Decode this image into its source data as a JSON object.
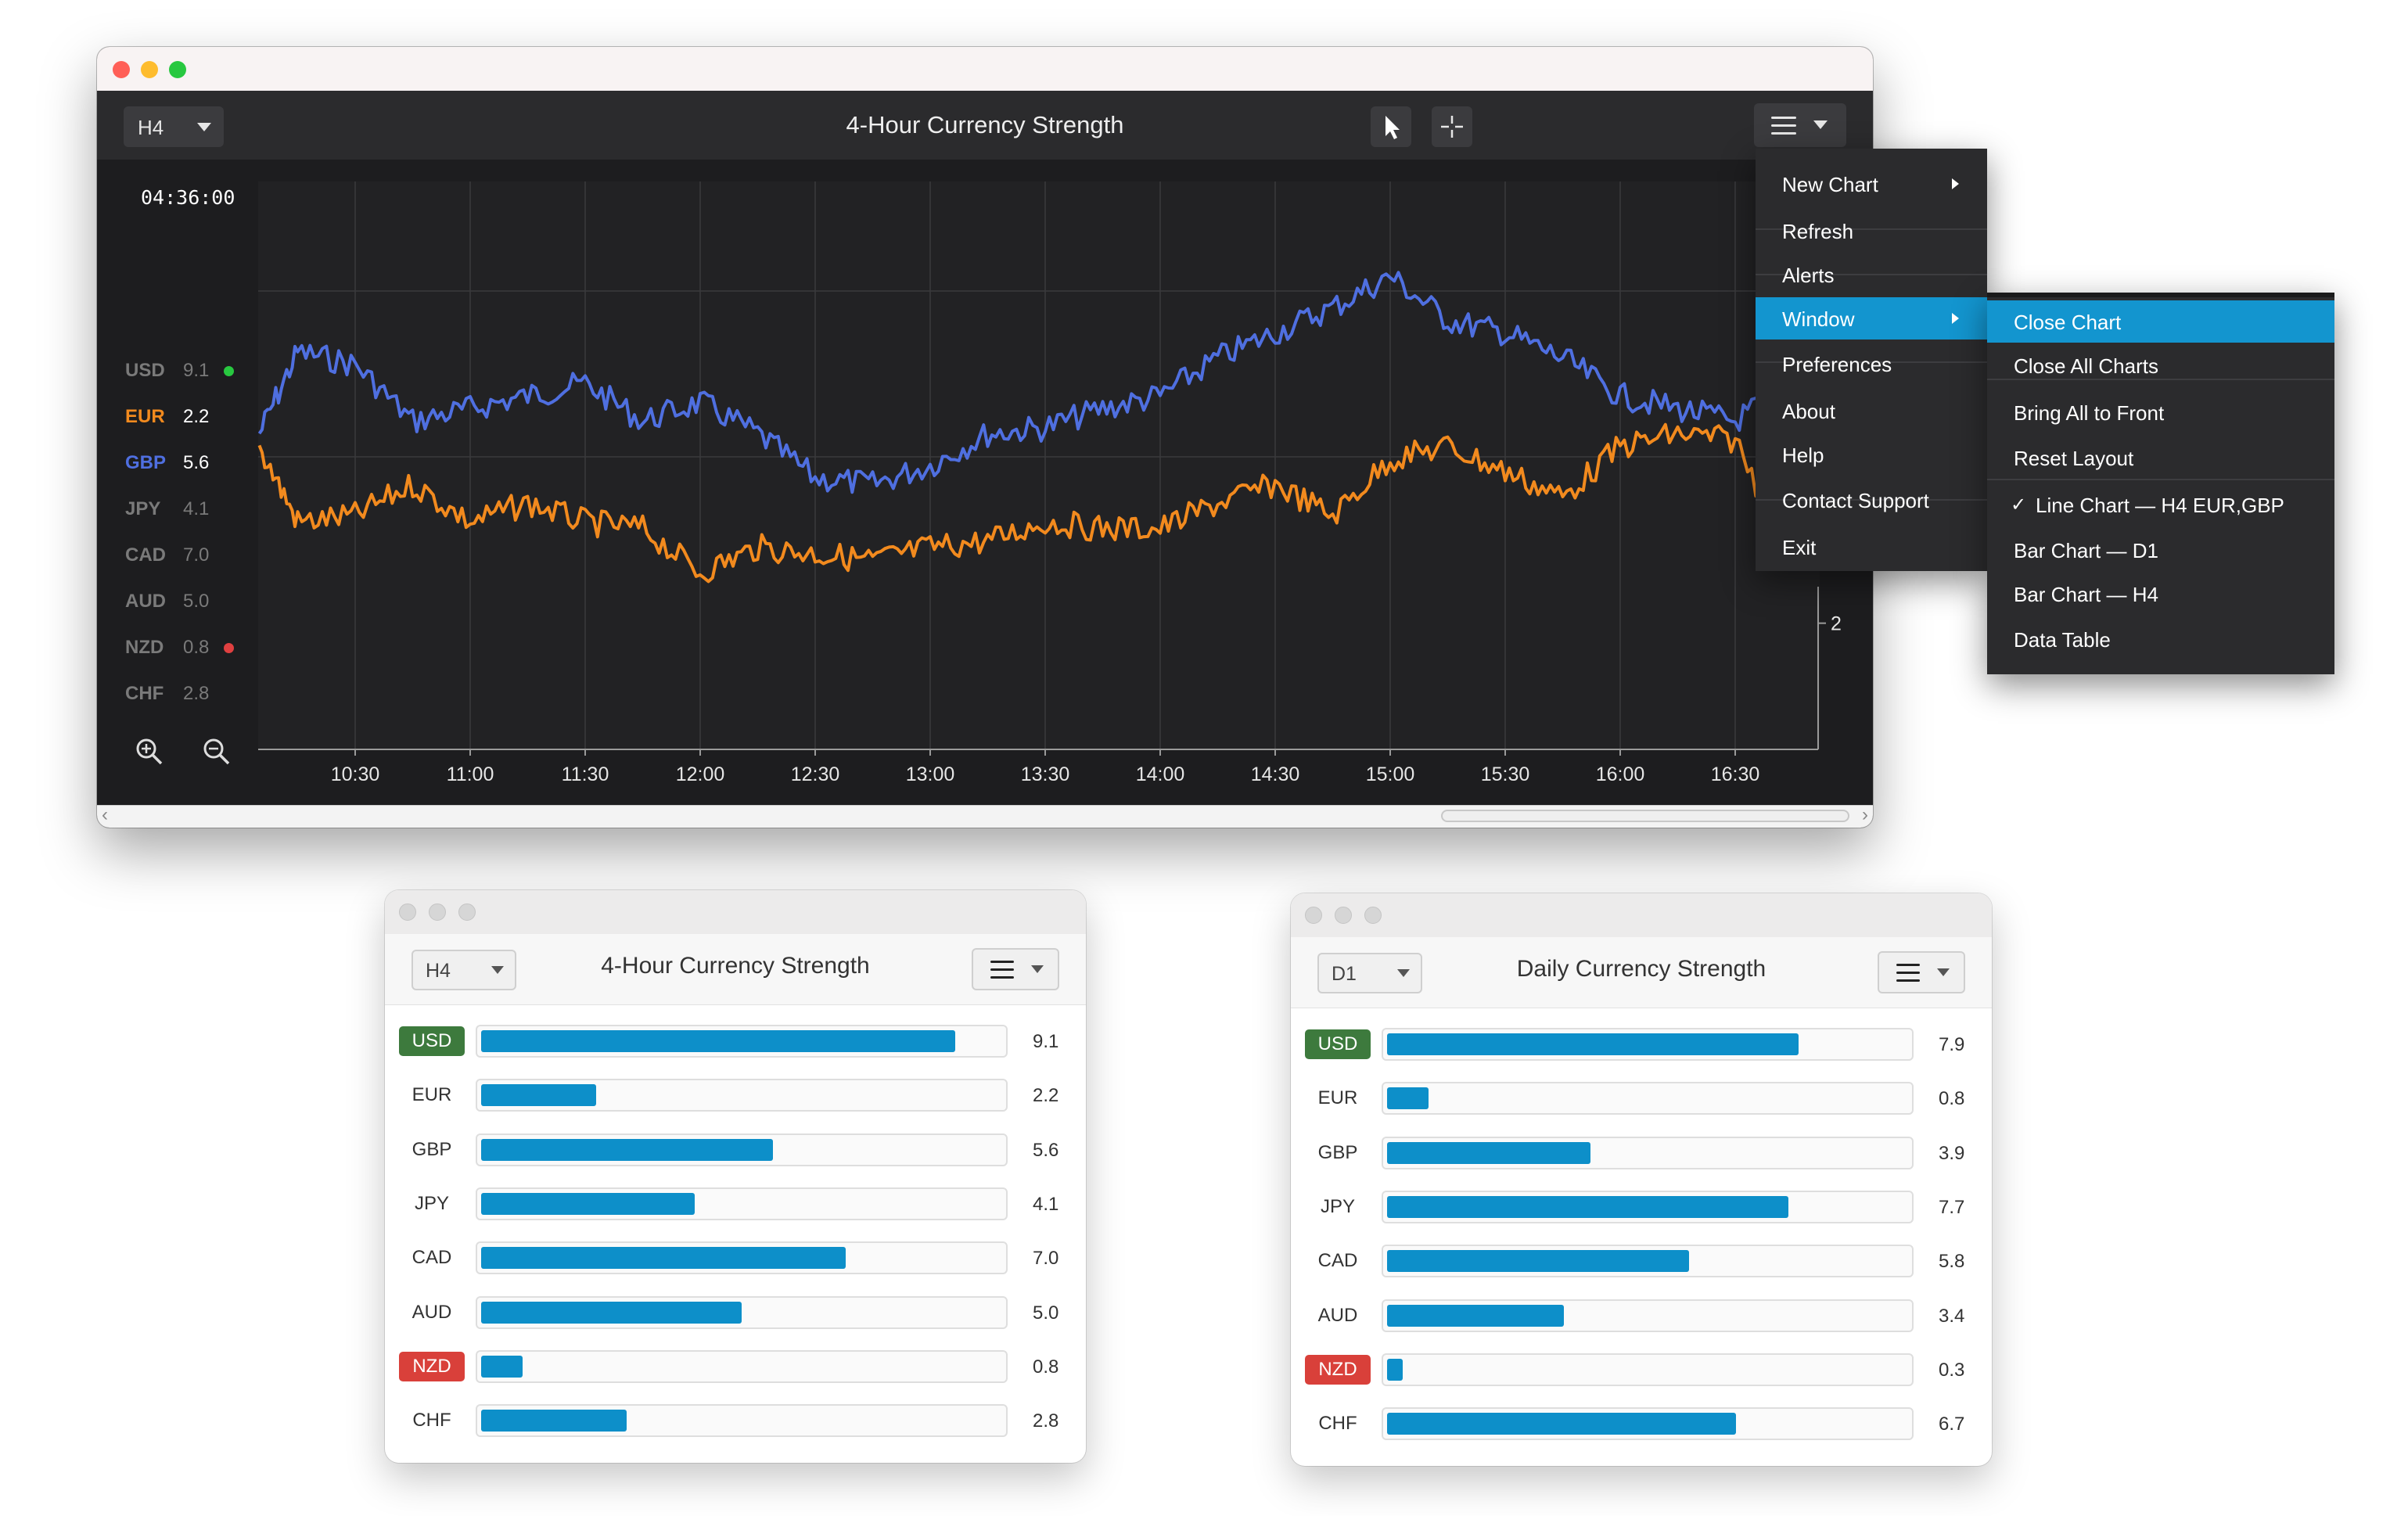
{
  "main_window": {
    "timeframe": "H4",
    "title": "4-Hour Currency Strength",
    "time_readout": "04:36:00",
    "legend": [
      {
        "code": "USD",
        "value": "9.1",
        "color": "#7a7a7a",
        "dot": "#28c840"
      },
      {
        "code": "EUR",
        "value": "2.2",
        "color": "#f28a1e",
        "dot": ""
      },
      {
        "code": "GBP",
        "value": "5.6",
        "color": "#4f6fe0",
        "dot": ""
      },
      {
        "code": "JPY",
        "value": "4.1",
        "color": "#7a7a7a",
        "dot": ""
      },
      {
        "code": "CAD",
        "value": "7.0",
        "color": "#7a7a7a",
        "dot": ""
      },
      {
        "code": "AUD",
        "value": "5.0",
        "color": "#7a7a7a",
        "dot": ""
      },
      {
        "code": "NZD",
        "value": "0.8",
        "color": "#7a7a7a",
        "dot": "#e04040"
      },
      {
        "code": "CHF",
        "value": "2.8",
        "color": "#7a7a7a",
        "dot": ""
      }
    ],
    "icons": [
      "arrow-cursor-icon",
      "crosshair-icon",
      "hamburger-icon",
      "zoom-in-icon",
      "zoom-out-icon"
    ]
  },
  "chart_data": {
    "type": "line",
    "x_tick_labels": [
      "10:30",
      "11:00",
      "11:30",
      "12:00",
      "12:30",
      "13:00",
      "13:30",
      "14:00",
      "14:30",
      "15:00",
      "15:30",
      "16:00",
      "16:30"
    ],
    "y_tick_labels_visible": [
      "2"
    ],
    "grid": true,
    "series": [
      {
        "name": "GBP",
        "color": "#4f6fe0",
        "x": [
          "10:05",
          "10:15",
          "10:30",
          "10:45",
          "11:00",
          "11:15",
          "11:30",
          "11:45",
          "12:00",
          "12:15",
          "12:30",
          "12:45",
          "13:00",
          "13:15",
          "13:30",
          "13:45",
          "14:00",
          "14:15",
          "14:30",
          "14:45",
          "15:00",
          "15:15",
          "15:30",
          "15:45",
          "16:00",
          "16:15",
          "16:30",
          "16:45"
        ],
        "y": [
          5.0,
          6.3,
          6.1,
          5.2,
          5.4,
          5.6,
          5.8,
          5.2,
          5.5,
          5.0,
          4.3,
          4.2,
          4.5,
          5.0,
          5.1,
          5.4,
          5.6,
          6.2,
          6.6,
          7.0,
          7.5,
          6.8,
          6.6,
          6.2,
          5.6,
          5.4,
          5.2,
          5.8
        ]
      },
      {
        "name": "EUR",
        "color": "#f28a1e",
        "x": [
          "10:05",
          "10:15",
          "10:30",
          "10:45",
          "11:00",
          "11:15",
          "11:30",
          "11:45",
          "12:00",
          "12:15",
          "12:30",
          "12:45",
          "13:00",
          "13:15",
          "13:30",
          "13:45",
          "14:00",
          "14:15",
          "14:30",
          "14:45",
          "15:00",
          "15:15",
          "15:30",
          "15:45",
          "16:00",
          "16:15",
          "16:30",
          "16:45"
        ],
        "y": [
          4.8,
          3.6,
          3.7,
          4.2,
          3.6,
          3.9,
          3.6,
          3.5,
          2.8,
          3.2,
          3.1,
          3.0,
          3.2,
          3.3,
          3.6,
          3.5,
          3.5,
          3.9,
          4.2,
          3.7,
          4.6,
          4.8,
          4.4,
          4.0,
          4.8,
          5.0,
          4.9,
          3.0
        ]
      }
    ],
    "ylim": [
      0,
      9
    ]
  },
  "menu": {
    "items": [
      {
        "label": "New Chart",
        "submenu": true
      },
      {
        "label": "Refresh",
        "submenu": false
      },
      {
        "label": "Alerts",
        "submenu": false
      },
      {
        "label": "Window",
        "submenu": true,
        "active": true
      },
      {
        "label": "Preferences",
        "submenu": false
      },
      {
        "label": "About",
        "submenu": false
      },
      {
        "label": "Help",
        "submenu": false
      },
      {
        "label": "Contact Support",
        "submenu": false
      },
      {
        "label": "Exit",
        "submenu": false
      }
    ],
    "window_submenu": [
      {
        "label": "Close Chart",
        "active": true
      },
      {
        "label": "Close All Charts"
      },
      {
        "label": "Bring All to Front"
      },
      {
        "label": "Reset Layout"
      },
      {
        "label": "Line Chart — H4  EUR,GBP",
        "checked": true
      },
      {
        "label": "Bar Chart — D1"
      },
      {
        "label": "Bar Chart — H4"
      },
      {
        "label": "Data Table"
      }
    ]
  },
  "bar_windows": [
    {
      "timeframe": "H4",
      "title": "4-Hour Currency Strength",
      "rows": [
        {
          "code": "USD",
          "value": "9.1",
          "badge": "pos"
        },
        {
          "code": "EUR",
          "value": "2.2",
          "badge": ""
        },
        {
          "code": "GBP",
          "value": "5.6",
          "badge": ""
        },
        {
          "code": "JPY",
          "value": "4.1",
          "badge": ""
        },
        {
          "code": "CAD",
          "value": "7.0",
          "badge": ""
        },
        {
          "code": "AUD",
          "value": "5.0",
          "badge": ""
        },
        {
          "code": "NZD",
          "value": "0.8",
          "badge": "neg"
        },
        {
          "code": "CHF",
          "value": "2.8",
          "badge": ""
        }
      ]
    },
    {
      "timeframe": "D1",
      "title": "Daily Currency Strength",
      "rows": [
        {
          "code": "USD",
          "value": "7.9",
          "badge": "pos"
        },
        {
          "code": "EUR",
          "value": "0.8",
          "badge": ""
        },
        {
          "code": "GBP",
          "value": "3.9",
          "badge": ""
        },
        {
          "code": "JPY",
          "value": "7.7",
          "badge": ""
        },
        {
          "code": "CAD",
          "value": "5.8",
          "badge": ""
        },
        {
          "code": "AUD",
          "value": "3.4",
          "badge": ""
        },
        {
          "code": "NZD",
          "value": "0.3",
          "badge": "neg"
        },
        {
          "code": "CHF",
          "value": "6.7",
          "badge": ""
        }
      ]
    }
  ],
  "bar_scale_max": 10,
  "colors": {
    "accent": "#1395cf",
    "bar": "#0d8fc9",
    "positive": "#3d7a3d",
    "negative": "#d9403a"
  }
}
